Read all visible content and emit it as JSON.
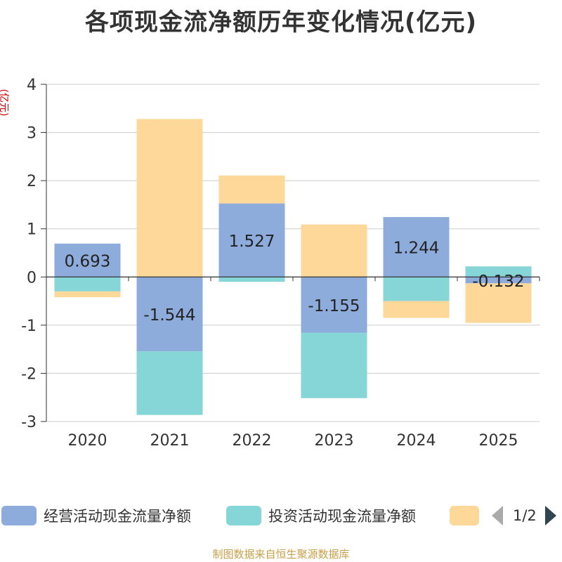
{
  "title": "各项现金流净额历年变化情况(亿元)",
  "unit_label": "(亿元)",
  "source_text": "制图数据来自恒生聚源数据库",
  "legend": {
    "items": [
      {
        "label": "经营活动现金流量净额",
        "color": "#8eacdb"
      },
      {
        "label": "投资活动现金流量净额",
        "color": "#86d6d8"
      },
      {
        "label": "",
        "color": "#fed898"
      }
    ],
    "pager_text": "1/2"
  },
  "chart_data": {
    "type": "bar",
    "stacked": true,
    "title": "各项现金流净额历年变化情况(亿元)",
    "ylabel": "(亿元)",
    "ylim": [
      -3,
      4
    ],
    "yticks": [
      4,
      3,
      2,
      1,
      0,
      -1,
      -2,
      -3
    ],
    "categories": [
      "2020",
      "2021",
      "2022",
      "2023",
      "2024",
      "2025"
    ],
    "series": [
      {
        "name": "经营活动现金流量净额",
        "color": "#8eacdb",
        "values": [
          0.693,
          -1.544,
          1.527,
          -1.155,
          1.244,
          -0.132
        ],
        "labels": [
          "0.693",
          "-1.544",
          "1.527",
          "-1.155",
          "1.244",
          "-0.132"
        ]
      },
      {
        "name": "投资活动现金流量净额",
        "color": "#86d6d8",
        "values": [
          -0.3,
          -1.32,
          -0.1,
          -1.36,
          -0.5,
          0.22
        ]
      },
      {
        "name": "",
        "color": "#fed898",
        "values": [
          -0.12,
          3.28,
          0.58,
          1.09,
          -0.35,
          -0.82
        ]
      }
    ]
  }
}
